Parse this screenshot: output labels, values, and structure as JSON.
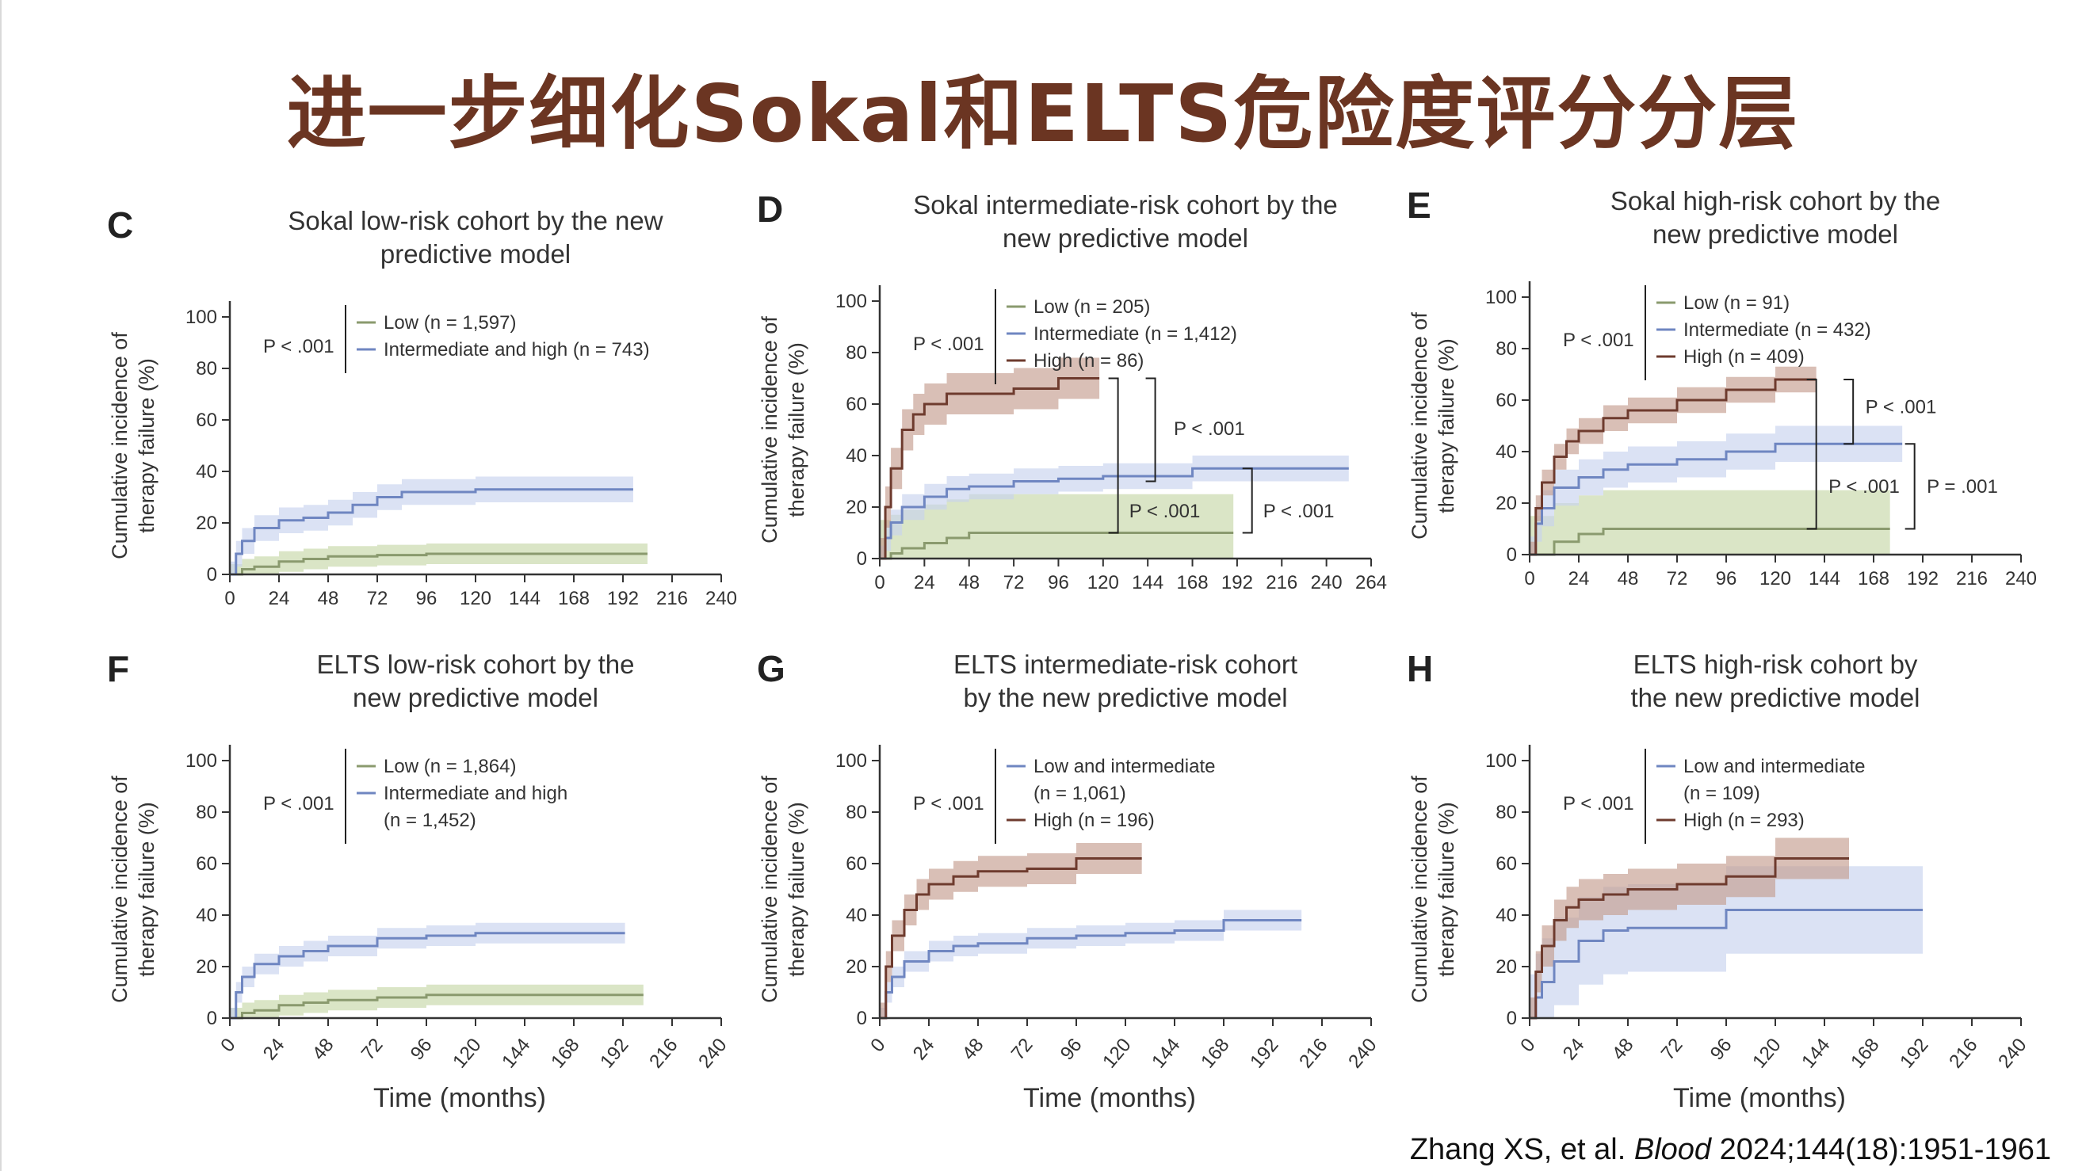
{
  "slide": {
    "title": "进一步细化Sokal和ELTS危险度评分分层",
    "citation_authors": "Zhang XS,  et al.",
    "citation_journal": "Blood",
    "citation_ref": "2024;144(18):1951-1961"
  },
  "colors": {
    "low": "#8a9a6e",
    "blue": "#6f86c1",
    "high": "#6e3b2e",
    "low_ci": "#c6d7a8",
    "blue_ci": "#c8d2ee",
    "high_ci": "#c49d8f"
  },
  "chart_data": [
    {
      "panel": "C",
      "type": "line",
      "title": [
        "Sokal low-risk cohort by the new",
        "predictive model"
      ],
      "ylabel": [
        "Cumulative incidence of",
        "therapy failure (%)"
      ],
      "xlabel": "",
      "xlim": [
        0,
        240
      ],
      "ylim": [
        0,
        100
      ],
      "xticks": [
        0,
        24,
        48,
        72,
        96,
        120,
        144,
        168,
        192,
        216,
        240
      ],
      "yticks": [
        0,
        20,
        40,
        60,
        80,
        100
      ],
      "pvalue": "P < .001",
      "legend": [
        {
          "label": "Low (n = 1,597)",
          "color": "low"
        },
        {
          "label": "Intermediate and high (n = 743)",
          "color": "blue"
        }
      ],
      "series": [
        {
          "name": "Low (n = 1,597)",
          "color": "low",
          "x": [
            0,
            6,
            12,
            24,
            36,
            48,
            72,
            96,
            120,
            144,
            168,
            204
          ],
          "y": [
            0,
            2,
            3,
            5,
            6,
            7,
            7.5,
            8,
            8,
            8,
            8,
            8
          ],
          "ci_half": 4
        },
        {
          "name": "Intermediate and high (n = 743)",
          "color": "blue",
          "x": [
            0,
            3,
            6,
            12,
            24,
            36,
            48,
            60,
            72,
            84,
            96,
            120,
            144,
            168,
            197
          ],
          "y": [
            0,
            8,
            13,
            18,
            21,
            22,
            24,
            27,
            30,
            32,
            32,
            33,
            33,
            33,
            33
          ],
          "ci_half": 5
        }
      ],
      "brackets": []
    },
    {
      "panel": "D",
      "type": "line",
      "title": [
        "Sokal intermediate-risk cohort by the",
        "new predictive model"
      ],
      "ylabel": [
        "Cumulative incidence of",
        "therapy failure (%)"
      ],
      "xlabel": "",
      "xlim": [
        0,
        264
      ],
      "ylim": [
        0,
        100
      ],
      "xticks": [
        0,
        24,
        48,
        72,
        96,
        120,
        144,
        168,
        192,
        216,
        240,
        264
      ],
      "yticks": [
        0,
        20,
        40,
        60,
        80,
        100
      ],
      "pvalue": "P < .001",
      "legend": [
        {
          "label": "Low (n = 205)",
          "color": "low"
        },
        {
          "label": "Intermediate (n = 1,412)",
          "color": "blue"
        },
        {
          "label": "High (n = 86)",
          "color": "high"
        }
      ],
      "series": [
        {
          "name": "Low (n = 205)",
          "color": "low",
          "x": [
            0,
            6,
            12,
            24,
            36,
            48,
            72,
            96,
            120,
            144,
            168,
            190
          ],
          "y": [
            0,
            2,
            4,
            6,
            8,
            10,
            10,
            10,
            10,
            10,
            10,
            10
          ],
          "ci_half": 15
        },
        {
          "name": "Intermediate (n = 1,412)",
          "color": "blue",
          "x": [
            0,
            3,
            6,
            12,
            24,
            36,
            48,
            72,
            96,
            120,
            144,
            168,
            192,
            216,
            252
          ],
          "y": [
            0,
            8,
            14,
            20,
            24,
            27,
            28,
            30,
            31,
            32,
            32,
            35,
            35,
            35,
            35
          ],
          "ci_half": 5
        },
        {
          "name": "High (n = 86)",
          "color": "high",
          "x": [
            0,
            3,
            6,
            12,
            18,
            24,
            36,
            48,
            72,
            96,
            118
          ],
          "y": [
            0,
            20,
            35,
            50,
            56,
            60,
            64,
            64,
            66,
            70,
            70
          ],
          "ci_half": 8
        }
      ],
      "brackets": [
        {
          "label": "P < .001",
          "y1": 70,
          "y2": 30,
          "x": 148,
          "tx": 158,
          "ty": 48
        },
        {
          "label": "P < .001",
          "y1": 70,
          "y2": 10,
          "x": 128,
          "tx": 134,
          "ty": 16
        },
        {
          "label": "P < .001",
          "y1": 35,
          "y2": 10,
          "x": 200,
          "tx": 206,
          "ty": 16
        }
      ]
    },
    {
      "panel": "E",
      "type": "line",
      "title": [
        "Sokal high-risk cohort by the",
        "new predictive model"
      ],
      "ylabel": [
        "Cumulative incidence of",
        "therapy failure (%)"
      ],
      "xlabel": "",
      "xlim": [
        0,
        240
      ],
      "ylim": [
        0,
        100
      ],
      "xticks": [
        0,
        24,
        48,
        72,
        96,
        120,
        144,
        168,
        192,
        216,
        240
      ],
      "yticks": [
        0,
        20,
        40,
        60,
        80,
        100
      ],
      "pvalue": "P < .001",
      "legend": [
        {
          "label": "Low (n = 91)",
          "color": "low"
        },
        {
          "label": "Intermediate (n = 432)",
          "color": "blue"
        },
        {
          "label": "High (n = 409)",
          "color": "high"
        }
      ],
      "series": [
        {
          "name": "Low (n = 91)",
          "color": "low",
          "x": [
            0,
            12,
            24,
            36,
            48,
            72,
            96,
            120,
            144,
            176
          ],
          "y": [
            0,
            5,
            8,
            10,
            10,
            10,
            10,
            10,
            10,
            10
          ],
          "ci_half": 15
        },
        {
          "name": "Intermediate (n = 432)",
          "color": "blue",
          "x": [
            0,
            3,
            6,
            12,
            24,
            36,
            48,
            72,
            96,
            120,
            144,
            182
          ],
          "y": [
            0,
            12,
            18,
            26,
            30,
            33,
            35,
            37,
            40,
            43,
            43,
            43
          ],
          "ci_half": 7
        },
        {
          "name": "High (n = 409)",
          "color": "high",
          "x": [
            0,
            3,
            6,
            12,
            18,
            24,
            36,
            48,
            72,
            96,
            120,
            140
          ],
          "y": [
            0,
            18,
            28,
            38,
            44,
            48,
            53,
            56,
            60,
            64,
            68,
            68
          ],
          "ci_half": 5
        }
      ],
      "brackets": [
        {
          "label": "P < .001",
          "y1": 68,
          "y2": 43,
          "x": 158,
          "tx": 164,
          "ty": 55
        },
        {
          "label": "P < .001",
          "y1": 68,
          "y2": 10,
          "x": 140,
          "tx": 146,
          "ty": 24
        },
        {
          "label": "P = .001",
          "y1": 43,
          "y2": 10,
          "x": 188,
          "tx": 194,
          "ty": 24
        }
      ]
    },
    {
      "panel": "F",
      "type": "line",
      "title": [
        "ELTS low-risk cohort by the",
        "new predictive model"
      ],
      "ylabel": [
        "Cumulative incidence of",
        "therapy failure (%)"
      ],
      "xlabel": "Time (months)",
      "xlim": [
        0,
        240
      ],
      "ylim": [
        0,
        100
      ],
      "xticks": [
        0,
        24,
        48,
        72,
        96,
        120,
        144,
        168,
        192,
        216,
        240
      ],
      "yticks": [
        0,
        20,
        40,
        60,
        80,
        100
      ],
      "pvalue": "P < .001",
      "legend": [
        {
          "label": "Low (n = 1,864)",
          "color": "low"
        },
        {
          "label": "Intermediate and high",
          "label2": "(n = 1,452)",
          "color": "blue"
        }
      ],
      "series": [
        {
          "name": "Low (n = 1,864)",
          "color": "low",
          "x": [
            0,
            6,
            12,
            24,
            36,
            48,
            72,
            96,
            120,
            144,
            168,
            202
          ],
          "y": [
            0,
            2,
            3,
            5,
            6,
            7,
            8,
            9,
            9,
            9,
            9,
            9
          ],
          "ci_half": 4
        },
        {
          "name": "Intermediate and high (n = 1,452)",
          "color": "blue",
          "x": [
            0,
            3,
            6,
            12,
            24,
            36,
            48,
            72,
            96,
            120,
            144,
            168,
            193
          ],
          "y": [
            0,
            10,
            16,
            21,
            24,
            26,
            28,
            31,
            32,
            33,
            33,
            33,
            33
          ],
          "ci_half": 4
        }
      ],
      "brackets": []
    },
    {
      "panel": "G",
      "type": "line",
      "title": [
        "ELTS intermediate-risk cohort",
        "by the new predictive model"
      ],
      "ylabel": [
        "Cumulative incidence of",
        "therapy failure (%)"
      ],
      "xlabel": "Time (months)",
      "xlim": [
        0,
        240
      ],
      "ylim": [
        0,
        100
      ],
      "xticks": [
        0,
        24,
        48,
        72,
        96,
        120,
        144,
        168,
        192,
        216,
        240
      ],
      "yticks": [
        0,
        20,
        40,
        60,
        80,
        100
      ],
      "pvalue": "P < .001",
      "legend": [
        {
          "label": "Low and intermediate",
          "label2": "(n = 1,061)",
          "color": "blue"
        },
        {
          "label": "High (n = 196)",
          "color": "high"
        }
      ],
      "series": [
        {
          "name": "Low and intermediate (n = 1,061)",
          "color": "blue",
          "x": [
            0,
            3,
            6,
            12,
            24,
            36,
            48,
            72,
            96,
            120,
            144,
            168,
            206
          ],
          "y": [
            0,
            10,
            16,
            22,
            26,
            28,
            29,
            31,
            32,
            33,
            34,
            38,
            38
          ],
          "ci_half": 4
        },
        {
          "name": "High (n = 196)",
          "color": "high",
          "x": [
            0,
            3,
            6,
            12,
            18,
            24,
            36,
            48,
            72,
            96,
            128
          ],
          "y": [
            0,
            20,
            32,
            42,
            48,
            52,
            55,
            57,
            58,
            62,
            62
          ],
          "ci_half": 6
        }
      ],
      "brackets": []
    },
    {
      "panel": "H",
      "type": "line",
      "title": [
        "ELTS high-risk cohort by",
        "the new predictive model"
      ],
      "ylabel": [
        "Cumulative incidence of",
        "therapy failure (%)"
      ],
      "xlabel": "Time (months)",
      "xlim": [
        0,
        240
      ],
      "ylim": [
        0,
        100
      ],
      "xticks": [
        0,
        24,
        48,
        72,
        96,
        120,
        144,
        168,
        192,
        216,
        240
      ],
      "yticks": [
        0,
        20,
        40,
        60,
        80,
        100
      ],
      "pvalue": "P < .001",
      "legend": [
        {
          "label": "Low and intermediate",
          "label2": "(n = 109)",
          "color": "blue"
        },
        {
          "label": "High (n = 293)",
          "color": "high"
        }
      ],
      "series": [
        {
          "name": "Low and intermediate (n = 109)",
          "color": "blue",
          "x": [
            0,
            3,
            6,
            12,
            24,
            36,
            48,
            72,
            96,
            120,
            144,
            192
          ],
          "y": [
            0,
            8,
            14,
            22,
            30,
            34,
            35,
            35,
            42,
            42,
            42,
            42
          ],
          "ci_half": 17
        },
        {
          "name": "High (n = 293)",
          "color": "high",
          "x": [
            0,
            3,
            6,
            12,
            18,
            24,
            36,
            48,
            72,
            96,
            120,
            156
          ],
          "y": [
            0,
            18,
            28,
            38,
            43,
            46,
            48,
            50,
            52,
            55,
            62,
            62
          ],
          "ci_half": 8
        }
      ],
      "brackets": []
    }
  ]
}
